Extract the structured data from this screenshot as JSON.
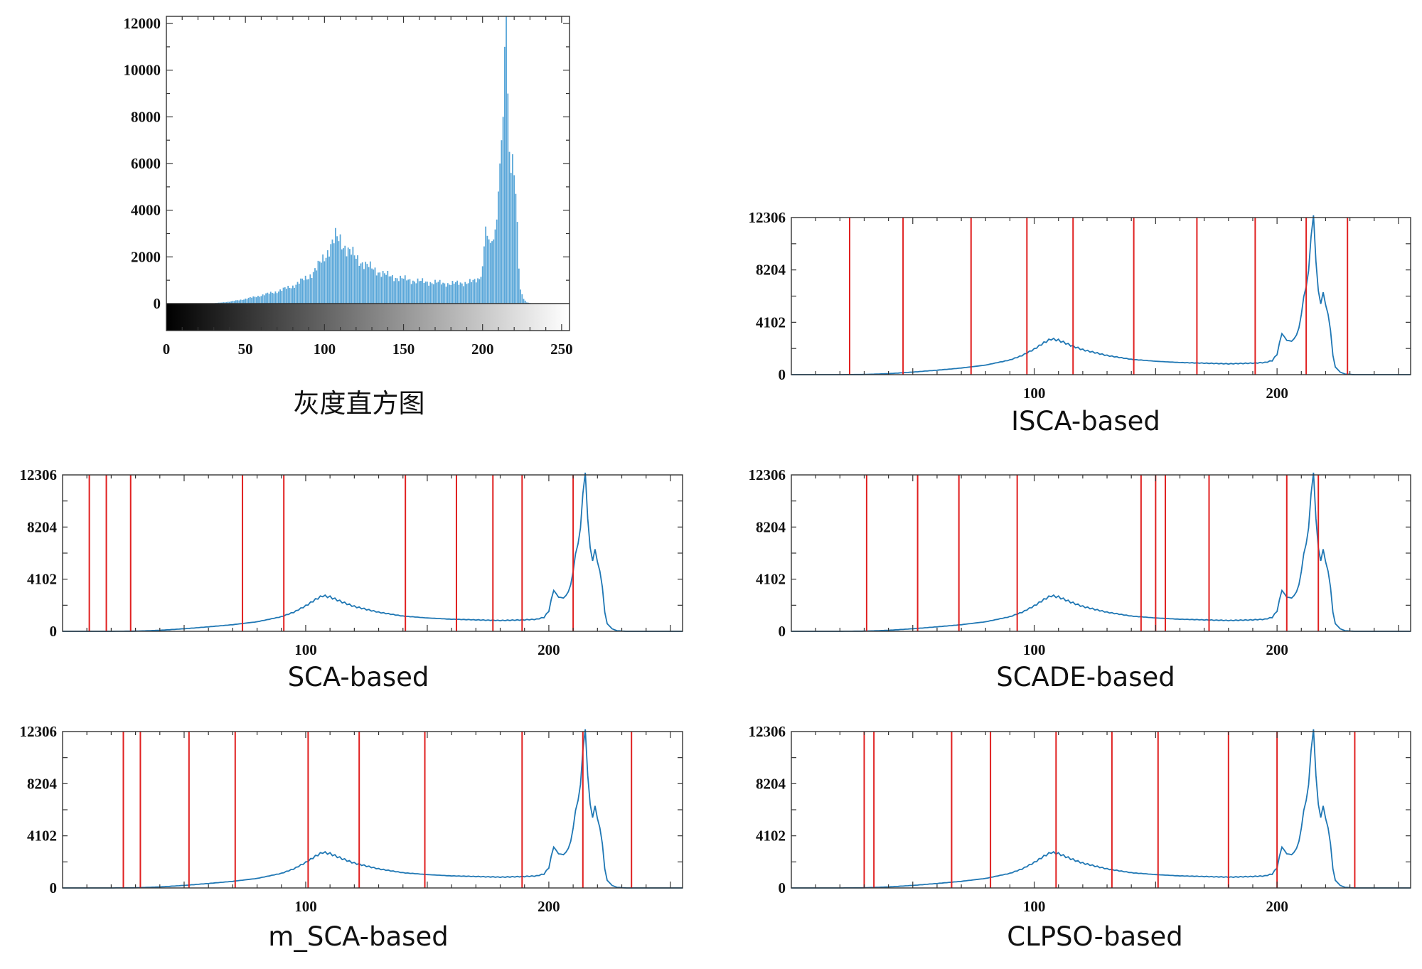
{
  "chart_data": [
    {
      "id": "hist",
      "type": "bar",
      "caption": "灰度直方图",
      "xlim": [
        0,
        255
      ],
      "ylim": [
        0,
        12306
      ],
      "xticks": [
        0,
        50,
        100,
        150,
        200,
        250
      ],
      "yticks": [
        0,
        2000,
        4000,
        6000,
        8000,
        10000,
        12000
      ],
      "colorbar": "grayscale 0-255",
      "bar_color": "#5aa7d9",
      "profile": [
        [
          0,
          0
        ],
        [
          20,
          0
        ],
        [
          30,
          15
        ],
        [
          40,
          80
        ],
        [
          50,
          200
        ],
        [
          60,
          350
        ],
        [
          70,
          520
        ],
        [
          80,
          750
        ],
        [
          90,
          1150
        ],
        [
          95,
          1500
        ],
        [
          100,
          2000
        ],
        [
          104,
          2500
        ],
        [
          107,
          2800
        ],
        [
          110,
          2700
        ],
        [
          115,
          2300
        ],
        [
          120,
          1950
        ],
        [
          130,
          1500
        ],
        [
          140,
          1200
        ],
        [
          150,
          1050
        ],
        [
          160,
          950
        ],
        [
          170,
          900
        ],
        [
          180,
          850
        ],
        [
          190,
          900
        ],
        [
          195,
          950
        ],
        [
          198,
          1100
        ],
        [
          200,
          1600
        ],
        [
          202,
          3300
        ],
        [
          203,
          2900
        ],
        [
          205,
          2600
        ],
        [
          207,
          2750
        ],
        [
          209,
          3600
        ],
        [
          211,
          6000
        ],
        [
          213,
          8000
        ],
        [
          214,
          11000
        ],
        [
          215,
          12306
        ],
        [
          216,
          9000
        ],
        [
          217,
          6500
        ],
        [
          218,
          5600
        ],
        [
          219,
          6400
        ],
        [
          220,
          5500
        ],
        [
          221,
          4700
        ],
        [
          222,
          3500
        ],
        [
          223,
          1500
        ],
        [
          224,
          600
        ],
        [
          226,
          200
        ],
        [
          228,
          50
        ],
        [
          232,
          0
        ],
        [
          255,
          0
        ]
      ]
    },
    {
      "id": "isca",
      "type": "line",
      "caption": "ISCA-based",
      "xlim": [
        0,
        255
      ],
      "ylim": [
        0,
        12306
      ],
      "xticks": [
        100,
        200
      ],
      "yticks": [
        0,
        4102,
        8204,
        12306
      ],
      "line_color": "#1f77b4",
      "threshold_color": "#e02020",
      "thresholds": [
        24,
        46,
        74,
        97,
        116,
        141,
        167,
        191,
        212,
        229
      ]
    },
    {
      "id": "sca",
      "type": "line",
      "caption": "SCA-based",
      "xlim": [
        0,
        255
      ],
      "ylim": [
        0,
        12306
      ],
      "xticks": [
        100,
        200
      ],
      "yticks": [
        0,
        4102,
        8204,
        12306
      ],
      "line_color": "#1f77b4",
      "threshold_color": "#e02020",
      "thresholds": [
        11,
        18,
        28,
        74,
        91,
        141,
        162,
        177,
        189,
        210
      ]
    },
    {
      "id": "scade",
      "type": "line",
      "caption": "SCADE-based",
      "xlim": [
        0,
        255
      ],
      "ylim": [
        0,
        12306
      ],
      "xticks": [
        100,
        200
      ],
      "yticks": [
        0,
        4102,
        8204,
        12306
      ],
      "line_color": "#1f77b4",
      "threshold_color": "#e02020",
      "thresholds": [
        31,
        52,
        69,
        93,
        144,
        150,
        154,
        172,
        204,
        217
      ]
    },
    {
      "id": "msca",
      "type": "line",
      "caption": "m_SCA-based",
      "xlim": [
        0,
        255
      ],
      "ylim": [
        0,
        12306
      ],
      "xticks": [
        100,
        200
      ],
      "yticks": [
        0,
        4102,
        8204,
        12306
      ],
      "line_color": "#1f77b4",
      "threshold_color": "#e02020",
      "thresholds": [
        25,
        32,
        52,
        71,
        101,
        122,
        149,
        189,
        214,
        234
      ]
    },
    {
      "id": "clpso",
      "type": "line",
      "caption": "CLPSO-based",
      "xlim": [
        0,
        255
      ],
      "ylim": [
        0,
        12306
      ],
      "xticks": [
        100,
        200
      ],
      "yticks": [
        0,
        4102,
        8204,
        12306
      ],
      "line_color": "#1f77b4",
      "threshold_color": "#e02020",
      "thresholds": [
        30,
        34,
        66,
        82,
        109,
        132,
        151,
        180,
        200,
        232
      ]
    }
  ]
}
